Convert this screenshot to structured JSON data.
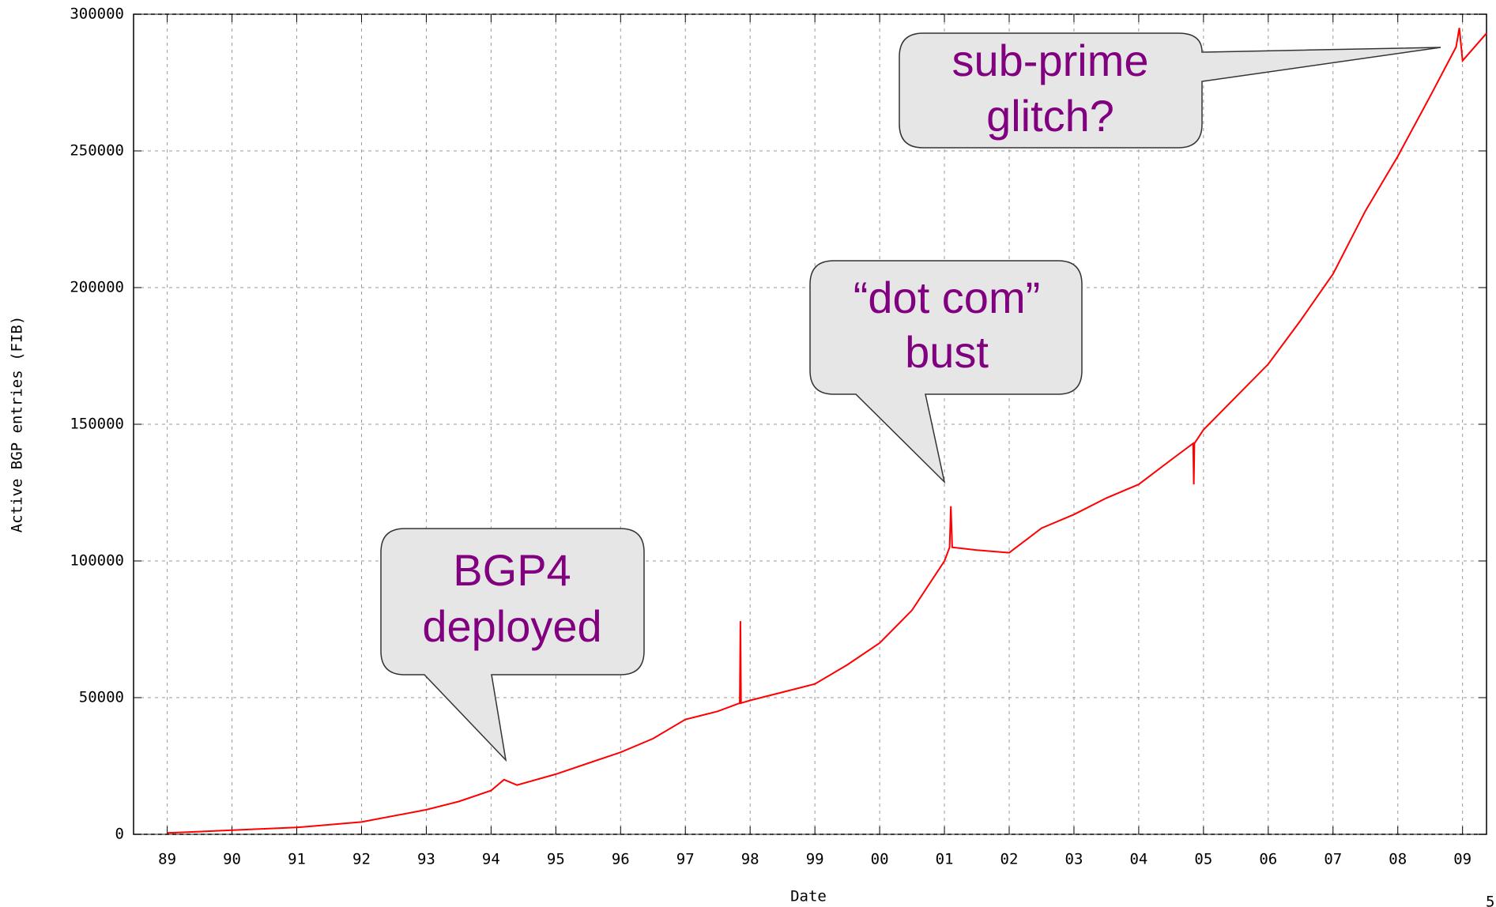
{
  "chart_data": {
    "type": "line",
    "xlabel": "Date",
    "ylabel": "Active BGP entries (FIB)",
    "x": [
      1989.0,
      1990.0,
      1991.0,
      1992.0,
      1993.0,
      1993.5,
      1994.0,
      1994.2,
      1994.4,
      1995.0,
      1995.5,
      1996.0,
      1996.5,
      1997.0,
      1997.5,
      1997.84,
      1997.85,
      1997.86,
      1998.0,
      1998.5,
      1999.0,
      1999.5,
      2000.0,
      2000.5,
      2001.0,
      2001.08,
      2001.1,
      2001.12,
      2001.5,
      2002.0,
      2002.5,
      2003.0,
      2003.5,
      2004.0,
      2004.5,
      2004.84,
      2004.85,
      2004.86,
      2005.0,
      2005.5,
      2006.0,
      2006.5,
      2007.0,
      2007.5,
      2008.0,
      2008.5,
      2008.9,
      2008.95,
      2009.0,
      2009.37
    ],
    "values": [
      500,
      1500,
      2500,
      4500,
      9000,
      12000,
      16000,
      20000,
      18000,
      22000,
      26000,
      30000,
      35000,
      42000,
      45000,
      48000,
      78000,
      48000,
      49000,
      52000,
      55000,
      62000,
      70000,
      82000,
      100000,
      105000,
      120000,
      105000,
      104000,
      103000,
      112000,
      117000,
      123000,
      128000,
      137000,
      143000,
      128000,
      143000,
      148000,
      160000,
      172000,
      188000,
      205000,
      228000,
      248000,
      270000,
      288000,
      295000,
      283000,
      293000
    ],
    "color": "#ff0000",
    "xlim": [
      1988.48,
      2009.37
    ],
    "xticks": [
      {
        "value": 1989,
        "label": "89"
      },
      {
        "value": 1990,
        "label": "90"
      },
      {
        "value": 1991,
        "label": "91"
      },
      {
        "value": 1992,
        "label": "92"
      },
      {
        "value": 1993,
        "label": "93"
      },
      {
        "value": 1994,
        "label": "94"
      },
      {
        "value": 1995,
        "label": "95"
      },
      {
        "value": 1996,
        "label": "96"
      },
      {
        "value": 1997,
        "label": "97"
      },
      {
        "value": 1998,
        "label": "98"
      },
      {
        "value": 1999,
        "label": "99"
      },
      {
        "value": 2000,
        "label": "00"
      },
      {
        "value": 2001,
        "label": "01"
      },
      {
        "value": 2002,
        "label": "02"
      },
      {
        "value": 2003,
        "label": "03"
      },
      {
        "value": 2004,
        "label": "04"
      },
      {
        "value": 2005,
        "label": "05"
      },
      {
        "value": 2006,
        "label": "06"
      },
      {
        "value": 2007,
        "label": "07"
      },
      {
        "value": 2008,
        "label": "08"
      },
      {
        "value": 2009,
        "label": "09"
      }
    ],
    "ylim": [
      0,
      300000
    ],
    "yticks": [
      0,
      50000,
      100000,
      150000,
      200000,
      250000,
      300000
    ],
    "grid": true,
    "annotations": [
      {
        "lines": [
          "sub-prime",
          "glitch?"
        ]
      },
      {
        "lines": [
          "“dot com”",
          "bust"
        ]
      },
      {
        "lines": [
          "BGP4",
          "deployed"
        ]
      }
    ],
    "page_number": "5"
  }
}
